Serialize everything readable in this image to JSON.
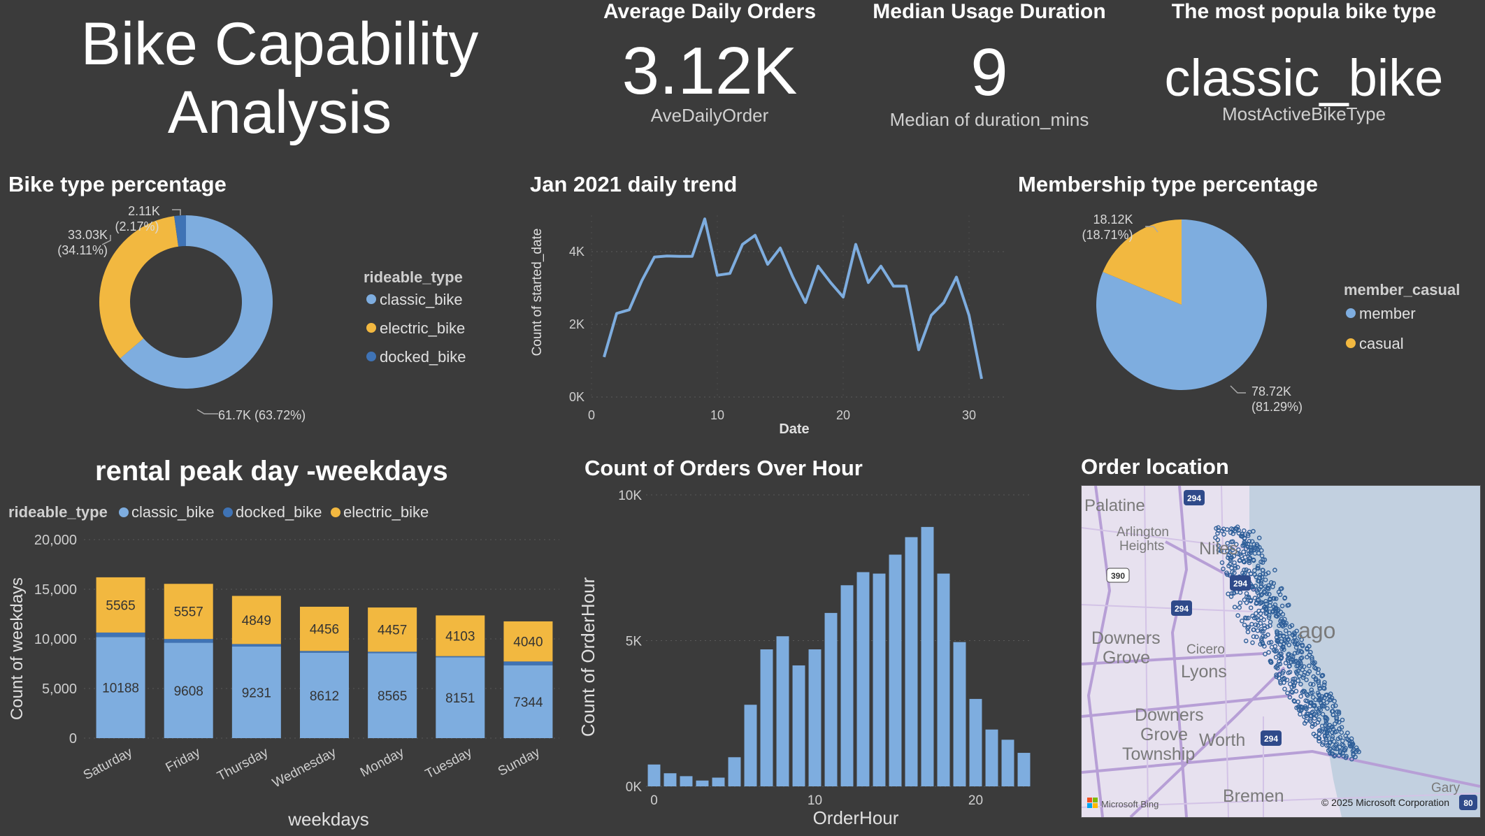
{
  "dashboard": {
    "title_line1": "Bike Capability",
    "title_line2": "Analysis"
  },
  "kpis": [
    {
      "heading": "Average Daily Orders",
      "value": "3.12K",
      "label": "AveDailyOrder"
    },
    {
      "heading": "Median Usage Duration",
      "value": "9",
      "label": "Median of duration_mins"
    },
    {
      "heading": "The most popula bike type",
      "value": "classic_bike",
      "label": "MostActiveBikeType"
    }
  ],
  "colors": {
    "background": "#3b3b3b",
    "classic": "#7eaddf",
    "electric": "#f2b840",
    "docked": "#3f73b5",
    "text": "#ffffff",
    "axis_text": "#cfcfcf"
  },
  "bike_type_panel": {
    "title": "Bike type percentage",
    "legend_title": "rideable_type",
    "chart_data": {
      "type": "pie",
      "donut": true,
      "categories": [
        "classic_bike",
        "electric_bike",
        "docked_bike"
      ],
      "values": [
        61700,
        33030,
        2110
      ],
      "labels": [
        "61.7K (63.72%)",
        "33.03K (34.11%)",
        "2.11K (2.17%)"
      ],
      "label_lines": [
        [
          "61.7K (63.72%)"
        ],
        [
          "33.03K",
          "(34.11%)"
        ],
        [
          "2.11K",
          "(2.17%)"
        ]
      ],
      "percentages": [
        63.72,
        34.11,
        2.17
      ]
    }
  },
  "daily_trend_panel": {
    "title": "Jan 2021 daily trend",
    "chart_data": {
      "type": "line",
      "xlabel": "Date",
      "ylabel": "Count of started_date",
      "x": [
        1,
        2,
        3,
        4,
        5,
        6,
        7,
        8,
        9,
        10,
        11,
        12,
        13,
        14,
        15,
        16,
        17,
        18,
        19,
        20,
        21,
        22,
        23,
        24,
        25,
        26,
        27,
        28,
        29,
        30,
        31
      ],
      "values": [
        1100,
        2300,
        2400,
        3200,
        3850,
        3880,
        3870,
        3870,
        4900,
        3350,
        3400,
        4200,
        4450,
        3650,
        4100,
        3300,
        2600,
        3600,
        3150,
        2750,
        4200,
        3150,
        3600,
        3050,
        3050,
        1300,
        2250,
        2600,
        3300,
        2250,
        500
      ],
      "xlim": [
        0,
        33
      ],
      "ylim": [
        0,
        5000
      ],
      "yticks": [
        0,
        2000,
        4000
      ],
      "ytick_labels": [
        "0K",
        "2K",
        "4K"
      ],
      "xticks": [
        0,
        10,
        20,
        30
      ]
    }
  },
  "membership_panel": {
    "title": "Membership type percentage",
    "legend_title": "member_casual",
    "chart_data": {
      "type": "pie",
      "categories": [
        "member",
        "casual"
      ],
      "values": [
        78720,
        18120
      ],
      "label_lines": [
        [
          "78.72K",
          "(81.29%)"
        ],
        [
          "18.12K",
          "(18.71%)"
        ]
      ],
      "percentages": [
        81.29,
        18.71
      ]
    }
  },
  "weekday_panel": {
    "title": "rental peak day -weekdays",
    "legend_title": "rideable_type",
    "chart_data": {
      "type": "bar",
      "stacked": true,
      "xlabel": "weekdays",
      "ylabel": "Count of weekdays",
      "categories": [
        "Saturday",
        "Friday",
        "Thursday",
        "Wednesday",
        "Monday",
        "Tuesday",
        "Sunday"
      ],
      "series": [
        {
          "name": "classic_bike",
          "values": [
            10188,
            9608,
            9231,
            8612,
            8565,
            8151,
            7344
          ]
        },
        {
          "name": "docked_bike",
          "values": [
            450,
            380,
            250,
            170,
            140,
            110,
            380
          ]
        },
        {
          "name": "electric_bike",
          "values": [
            5565,
            5557,
            4849,
            4456,
            4457,
            4103,
            4040
          ]
        }
      ],
      "ylim": [
        0,
        20000
      ],
      "yticks": [
        0,
        5000,
        10000,
        15000,
        20000
      ],
      "ytick_labels": [
        "0",
        "5,000",
        "10,000",
        "15,000",
        "20,000"
      ]
    }
  },
  "hour_panel": {
    "title": "Count of Orders Over Hour",
    "chart_data": {
      "type": "bar",
      "xlabel": "OrderHour",
      "ylabel": "Count of OrderHour",
      "categories": [
        0,
        1,
        2,
        3,
        4,
        5,
        6,
        7,
        8,
        9,
        10,
        11,
        12,
        13,
        14,
        15,
        16,
        17,
        18,
        19,
        20,
        21,
        22,
        23
      ],
      "values": [
        750,
        450,
        350,
        200,
        300,
        1000,
        2800,
        4700,
        5150,
        4150,
        4700,
        5950,
        6900,
        7350,
        7300,
        7950,
        8550,
        8900,
        7300,
        4950,
        3000,
        1950,
        1600,
        1150
      ],
      "ylim": [
        0,
        10000
      ],
      "yticks": [
        0,
        5000,
        10000
      ],
      "ytick_labels": [
        "0K",
        "5K",
        "10K"
      ],
      "xticks": [
        0,
        10,
        20
      ]
    }
  },
  "map_panel": {
    "title": "Order location",
    "place_labels": [
      "Palatine",
      "Arlington",
      "Heights",
      "Niles",
      "Downers",
      "Grove",
      "Cicero",
      "Lyons",
      "Downers",
      "Grove",
      "Township",
      "Worth",
      "Bremen",
      "Gary",
      "ago"
    ],
    "road_shields": [
      "294",
      "390",
      "294",
      "294",
      "294",
      "80"
    ],
    "attribution_left": "Microsoft Bing",
    "attribution_right": "© 2025 Microsoft Corporation"
  }
}
